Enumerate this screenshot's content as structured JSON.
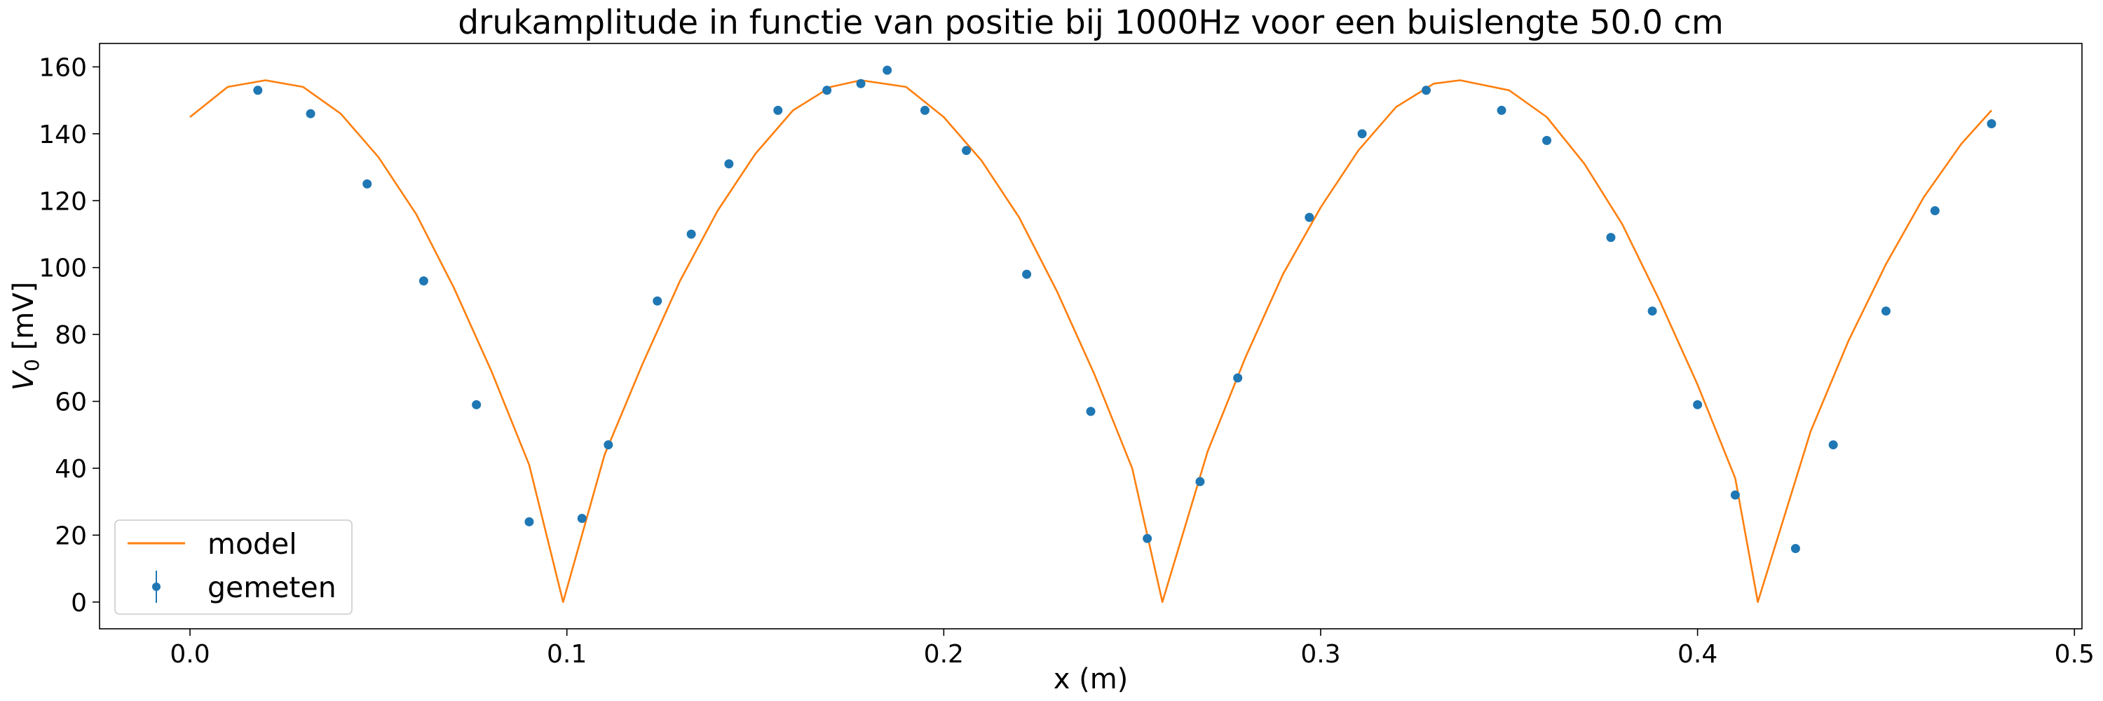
{
  "chart_data": {
    "type": "scatter",
    "title": "drukamplitude in functie van positie bij 1000Hz voor een buislengte 50.0 cm",
    "xlabel": "x (m)",
    "ylabel_main": "V",
    "ylabel_sub": "0",
    "ylabel_unit": " [mV]",
    "xlim": [
      -0.024,
      0.502
    ],
    "ylim": [
      -8,
      167
    ],
    "xticks": [
      0.0,
      0.1,
      0.2,
      0.3,
      0.4,
      0.5
    ],
    "xtick_labels": [
      "0.0",
      "0.1",
      "0.2",
      "0.3",
      "0.4",
      "0.5"
    ],
    "yticks": [
      0,
      20,
      40,
      60,
      80,
      100,
      120,
      140,
      160
    ],
    "ytick_labels": [
      "0",
      "20",
      "40",
      "60",
      "80",
      "100",
      "120",
      "140",
      "160"
    ],
    "grid": false,
    "legend_position": "lower-left",
    "series": [
      {
        "name": "model",
        "kind": "line",
        "color": "#ff7f0e",
        "x": [
          0.0,
          0.01,
          0.02,
          0.03,
          0.04,
          0.05,
          0.06,
          0.07,
          0.08,
          0.09,
          0.099,
          0.11,
          0.12,
          0.13,
          0.14,
          0.15,
          0.16,
          0.17,
          0.178,
          0.19,
          0.2,
          0.21,
          0.22,
          0.23,
          0.24,
          0.25,
          0.258,
          0.27,
          0.28,
          0.29,
          0.3,
          0.31,
          0.32,
          0.33,
          0.337,
          0.35,
          0.36,
          0.37,
          0.38,
          0.39,
          0.4,
          0.41,
          0.416,
          0.43,
          0.44,
          0.45,
          0.46,
          0.47,
          0.478
        ],
        "y": [
          145,
          154,
          156,
          154,
          146,
          133,
          116,
          94,
          69,
          41,
          0,
          44,
          71,
          96,
          117,
          134,
          147,
          154,
          156,
          154,
          145,
          132,
          115,
          93,
          68,
          40,
          0,
          45,
          73,
          98,
          118,
          135,
          148,
          155,
          156,
          153,
          145,
          131,
          113,
          90,
          65,
          37,
          0,
          51,
          78,
          101,
          121,
          137,
          147
        ]
      },
      {
        "name": "gemeten",
        "kind": "errorbar",
        "color": "#1f77b4",
        "x": [
          0.018,
          0.032,
          0.047,
          0.062,
          0.076,
          0.09,
          0.104,
          0.111,
          0.124,
          0.133,
          0.143,
          0.156,
          0.169,
          0.178,
          0.185,
          0.195,
          0.206,
          0.222,
          0.239,
          0.254,
          0.268,
          0.278,
          0.297,
          0.311,
          0.328,
          0.348,
          0.36,
          0.377,
          0.388,
          0.4,
          0.41,
          0.426,
          0.436,
          0.45,
          0.463,
          0.478
        ],
        "y": [
          153,
          146,
          125,
          96,
          59,
          24,
          25,
          47,
          90,
          110,
          131,
          147,
          153,
          155,
          159,
          147,
          135,
          98,
          57,
          19,
          36,
          67,
          115,
          140,
          153,
          147,
          138,
          109,
          87,
          59,
          32,
          16,
          47,
          87,
          117,
          143
        ]
      }
    ]
  }
}
